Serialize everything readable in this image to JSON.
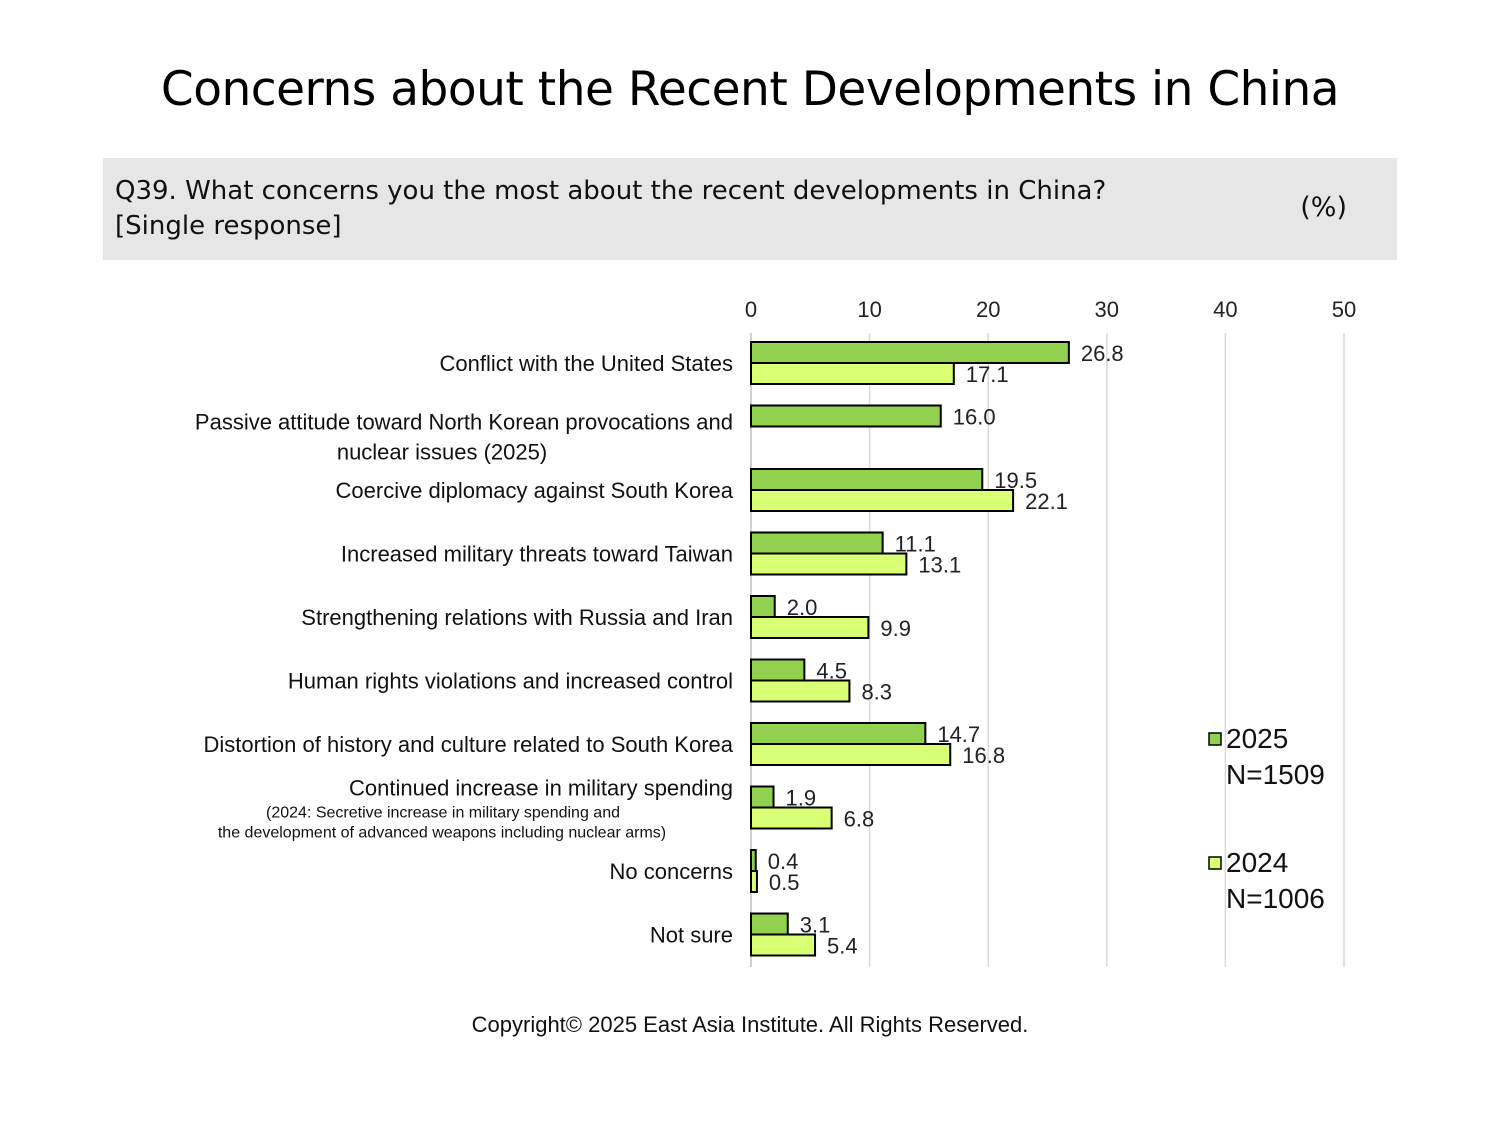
{
  "title": "Concerns about the Recent Developments in China",
  "question": {
    "line1": "Q39. What concerns you the most about the recent developments in China?",
    "line2": "[Single response]",
    "unit": "(%)"
  },
  "copyright": "Copyright© 2025 East Asia Institute. All Rights Reserved.",
  "colors": {
    "series_2025": "#92d050",
    "series_2024": "#d9ff75",
    "gridline": "#d9d9d9",
    "bar_stroke": "#000000",
    "question_bg": "#e7e6e6"
  },
  "chart_data": {
    "type": "bar",
    "orientation": "horizontal",
    "xlim": [
      0,
      50
    ],
    "xticks": [
      "0",
      "10",
      "20",
      "30",
      "40",
      "50"
    ],
    "grid": true,
    "legend_position": "right",
    "categories": [
      {
        "label": [
          "Conflict with the United States"
        ],
        "note": []
      },
      {
        "label": [
          "Passive attitude toward North Korean provocations and",
          "nuclear issues (2025)"
        ],
        "note": []
      },
      {
        "label": [
          "Coercive diplomacy against South Korea"
        ],
        "note": []
      },
      {
        "label": [
          "Increased military threats toward Taiwan"
        ],
        "note": []
      },
      {
        "label": [
          "Strengthening relations with Russia and Iran"
        ],
        "note": []
      },
      {
        "label": [
          "Human rights violations and increased control"
        ],
        "note": []
      },
      {
        "label": [
          "Distortion of history and culture related to South Korea"
        ],
        "note": []
      },
      {
        "label": [
          "Continued increase in military spending"
        ],
        "note": [
          "(2024: Secretive increase in military spending and",
          "the development of advanced weapons including nuclear arms)"
        ]
      },
      {
        "label": [
          "No concerns"
        ],
        "note": []
      },
      {
        "label": [
          "Not sure"
        ],
        "note": []
      }
    ],
    "series": [
      {
        "name": "2025",
        "sample": "N=1509",
        "color": "#92d050",
        "values": [
          26.8,
          16.0,
          19.5,
          11.1,
          2.0,
          4.5,
          14.7,
          1.9,
          0.4,
          3.1
        ],
        "labels": [
          "26.8",
          "16.0",
          "19.5",
          "11.1",
          "2.0",
          "4.5",
          "14.7",
          "1.9",
          "0.4",
          "3.1"
        ]
      },
      {
        "name": "2024",
        "sample": "N=1006",
        "color": "#d9ff75",
        "values": [
          17.1,
          null,
          22.1,
          13.1,
          9.9,
          8.3,
          16.8,
          6.8,
          0.5,
          5.4
        ],
        "labels": [
          "17.1",
          "",
          "22.1",
          "13.1",
          "9.9",
          "8.3",
          "16.8",
          "6.8",
          "0.5",
          "5.4"
        ]
      }
    ]
  }
}
